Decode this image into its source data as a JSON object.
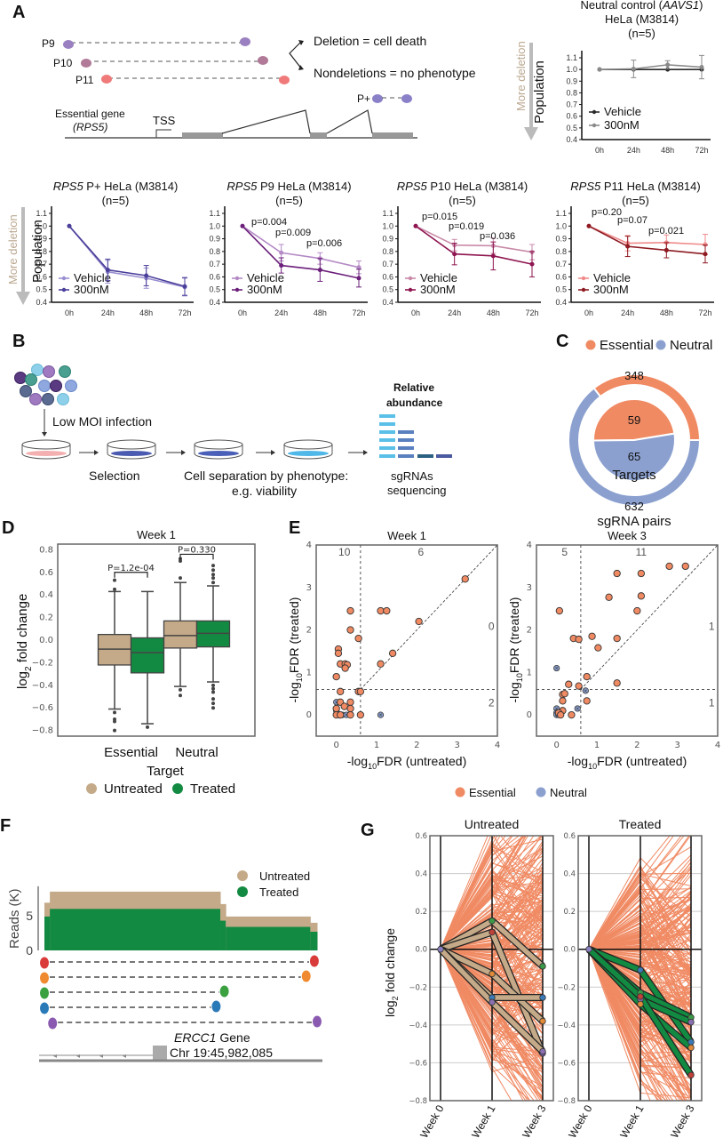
{
  "panels": {
    "A": {
      "letter": "A",
      "diagram": {
        "pairs": [
          "P9",
          "P10",
          "P11",
          "P+"
        ],
        "outcome_deletion": "Deletion = cell death",
        "outcome_nondeletion": "Nondeletions = no phenotype",
        "gene_label": "Essential gene",
        "gene_name": "(RPS5)",
        "tss_label": "TSS",
        "more_deletion": "More deletion"
      }
    },
    "B": {
      "letter": "B",
      "low_moi": "Low MOI infection",
      "selection": "Selection",
      "separation_1": "Cell separation by phenotype:",
      "separation_2": "e.g. viability",
      "relative_1": "Relative",
      "relative_2": "abundance",
      "seq_1": "sgRNAs",
      "seq_2": "sequencing"
    },
    "C": {
      "letter": "C"
    },
    "D": {
      "letter": "D"
    },
    "E": {
      "letter": "E"
    },
    "F": {
      "letter": "F",
      "gene_name": "ERCC1",
      "gene_suffix": " Gene",
      "coord": "Chr 19:45,982,085"
    },
    "G": {
      "letter": "G"
    }
  },
  "chart_data": [
    {
      "id": "A-aavs1",
      "type": "line",
      "title_italic": "AAVS1",
      "title_line1_pre": "Neutral control (",
      "title_line1_post": ")",
      "title_line2": "HeLa (M3814)",
      "title_line3": "(n=5)",
      "ylabel": "Population",
      "ylim": [
        0.4,
        1.1
      ],
      "yticks": [
        "0.4",
        "0.5",
        "0.6",
        "0.7",
        "0.8",
        "0.9",
        "1.0",
        "1.1"
      ],
      "categories": [
        "0h",
        "24h",
        "48h",
        "72h"
      ],
      "series": [
        {
          "name": "Vehicle",
          "color": "#2b2b2b",
          "values": [
            1.0,
            1.0,
            1.0,
            1.0
          ],
          "err": [
            0,
            0,
            0,
            0
          ]
        },
        {
          "name": "300nM",
          "color": "#8a8a8a",
          "values": [
            1.0,
            1.005,
            1.04,
            1.02
          ],
          "err": [
            0,
            0.075,
            0.035,
            0.1
          ]
        }
      ],
      "pvalues": []
    },
    {
      "id": "A-pplus",
      "type": "line",
      "title_italic": "RPS5",
      "title_rest": " P+ HeLa (M3814)",
      "title_line2": "(n=5)",
      "ylabel": "Population",
      "ylim": [
        0.4,
        1.1
      ],
      "yticks": [
        "0.4",
        "0.5",
        "0.6",
        "0.7",
        "0.8",
        "0.9",
        "1.0",
        "1.1"
      ],
      "categories": [
        "0h",
        "24h",
        "48h",
        "72h"
      ],
      "series": [
        {
          "name": "Vehicle",
          "color": "#9a8fd0",
          "values": [
            1.0,
            0.64,
            0.59,
            0.52
          ],
          "err": [
            0,
            0.09,
            0.08,
            0.07
          ]
        },
        {
          "name": "300nM",
          "color": "#4a3f9a",
          "values": [
            1.0,
            0.655,
            0.61,
            0.525
          ],
          "err": [
            0,
            0.085,
            0.08,
            0.07
          ]
        }
      ],
      "pvalues": []
    },
    {
      "id": "A-p9",
      "type": "line",
      "title_italic": "RPS5",
      "title_rest": " P9 HeLa (M3814)",
      "title_line2": "(n=5)",
      "ylabel": "",
      "ylim": [
        0.4,
        1.1
      ],
      "yticks": [
        "0.4",
        "0.5",
        "0.6",
        "0.7",
        "0.8",
        "0.9",
        "1.0",
        "1.1"
      ],
      "categories": [
        "0h",
        "24h",
        "48h",
        "72h"
      ],
      "series": [
        {
          "name": "Vehicle",
          "color": "#b48ac6",
          "values": [
            1.0,
            0.79,
            0.745,
            0.675
          ],
          "err": [
            0,
            0.065,
            0.045,
            0.05
          ]
        },
        {
          "name": "300nM",
          "color": "#6b1f7a",
          "values": [
            1.0,
            0.69,
            0.655,
            0.59
          ],
          "err": [
            0,
            0.06,
            0.09,
            0.07
          ]
        }
      ],
      "pvalues": [
        "p=0.004",
        "p=0.009",
        "p=0.006"
      ]
    },
    {
      "id": "A-p10",
      "type": "line",
      "title_italic": "RPS5",
      "title_rest": " P10 HeLa (M3814)",
      "title_line2": "(n=5)",
      "ylabel": "",
      "ylim": [
        0.4,
        1.1
      ],
      "yticks": [
        "0.4",
        "0.5",
        "0.6",
        "0.7",
        "0.8",
        "0.9",
        "1.0",
        "1.1"
      ],
      "categories": [
        "0h",
        "24h",
        "48h",
        "72h"
      ],
      "series": [
        {
          "name": "Vehicle",
          "color": "#c98aa8",
          "values": [
            1.0,
            0.85,
            0.845,
            0.795
          ],
          "err": [
            0,
            0.045,
            0.06,
            0.06
          ]
        },
        {
          "name": "300nM",
          "color": "#8e1550",
          "values": [
            1.0,
            0.78,
            0.765,
            0.7
          ],
          "err": [
            0,
            0.085,
            0.11,
            0.1
          ]
        }
      ],
      "pvalues": [
        "p=0.015",
        "p=0.019",
        "p=0.036"
      ]
    },
    {
      "id": "A-p11",
      "type": "line",
      "title_italic": "RPS5",
      "title_rest": " P11 HeLa (M3814)",
      "title_line2": "(n=5)",
      "ylabel": "",
      "ylim": [
        0.4,
        1.1
      ],
      "yticks": [
        "0.4",
        "0.5",
        "0.6",
        "0.7",
        "0.8",
        "0.9",
        "1.0",
        "1.1"
      ],
      "categories": [
        "0h",
        "24h",
        "48h",
        "72h"
      ],
      "series": [
        {
          "name": "Vehicle",
          "color": "#f08a8a",
          "values": [
            1.0,
            0.865,
            0.87,
            0.855
          ],
          "err": [
            0,
            0.06,
            0.06,
            0.08
          ]
        },
        {
          "name": "300nM",
          "color": "#8e1a22",
          "values": [
            1.0,
            0.84,
            0.81,
            0.78
          ],
          "err": [
            0,
            0.08,
            0.06,
            0.07
          ]
        }
      ],
      "pvalues": [
        "p=0.20",
        "p=0.07",
        "p=0.021"
      ]
    },
    {
      "id": "C",
      "type": "pie",
      "legend": [
        {
          "name": "Essential",
          "color": "#f08a63"
        },
        {
          "name": "Neutral",
          "color": "#8ba0cf"
        }
      ],
      "inner": {
        "label": "Targets",
        "values": [
          59,
          65
        ]
      },
      "outer": {
        "label": "sgRNA pairs",
        "values": [
          348,
          632
        ]
      }
    },
    {
      "id": "D",
      "type": "box",
      "title": "Week 1",
      "xlabel": "Target",
      "ylabel_pre": "log",
      "ylabel_sub": "2",
      "ylabel_post": " fold change",
      "ylim": [
        -0.85,
        0.85
      ],
      "yticks": [
        -0.8,
        -0.6,
        -0.4,
        -0.2,
        0.0,
        0.2,
        0.4,
        0.6,
        0.8
      ],
      "ytick_labels": [
        "−0.8",
        "−0.6",
        "−0.4",
        "−0.2",
        "0.0",
        "0.2",
        "0.4",
        "0.6",
        "0.8"
      ],
      "categories": [
        "Essential",
        "Neutral"
      ],
      "legend": [
        {
          "name": "Untreated",
          "color": "#c4aa88"
        },
        {
          "name": "Treated",
          "color": "#138a42"
        }
      ],
      "boxes": [
        {
          "group": "Essential",
          "series": "Untreated",
          "q1": -0.22,
          "median": -0.08,
          "q3": 0.05,
          "whislo": -0.61,
          "whishi": 0.43,
          "fliers": [
            0.45,
            0.53,
            -0.64,
            -0.7,
            -0.72,
            -0.8
          ]
        },
        {
          "group": "Essential",
          "series": "Treated",
          "q1": -0.29,
          "median": -0.11,
          "q3": 0.02,
          "whislo": -0.74,
          "whishi": 0.43,
          "fliers": [
            -0.77
          ]
        },
        {
          "group": "Neutral",
          "series": "Untreated",
          "q1": -0.07,
          "median": 0.04,
          "q3": 0.17,
          "whislo": -0.41,
          "whishi": 0.51,
          "fliers": [
            0.55,
            0.7,
            0.72,
            -0.44,
            -0.49
          ]
        },
        {
          "group": "Neutral",
          "series": "Treated",
          "q1": -0.06,
          "median": 0.06,
          "q3": 0.17,
          "whislo": -0.37,
          "whishi": 0.48,
          "fliers": [
            0.51,
            0.55,
            0.58,
            0.62,
            0.66,
            -0.4,
            -0.43,
            -0.46,
            -0.52,
            -0.56,
            -0.6
          ]
        }
      ],
      "pvalues": [
        "P=1.2e-04",
        "P=0.330"
      ]
    },
    {
      "id": "E-week1",
      "type": "scatter",
      "title": "Week 1",
      "xlabel_pre": "-log",
      "xlabel_sub": "10",
      "xlabel_post": "FDR (untreated)",
      "ylabel_pre": "-log",
      "ylabel_sub": "10",
      "ylabel_post": "FDR (treated)",
      "xlim": [
        -0.5,
        4
      ],
      "ylim": [
        -0.5,
        4
      ],
      "ticks": [
        "0",
        "1",
        "2",
        "3",
        "4"
      ],
      "threshold": 0.6,
      "quadrant_counts": {
        "top_left": "10",
        "top_right": "6",
        "right_upper": "0",
        "right_lower": "2"
      },
      "essential": [
        [
          3.2,
          3.2
        ],
        [
          0.35,
          2.45
        ],
        [
          1.1,
          2.45
        ],
        [
          1.25,
          2.45
        ],
        [
          2.05,
          2.2
        ],
        [
          0.35,
          2.0
        ],
        [
          0.55,
          1.8
        ],
        [
          0.05,
          1.55
        ],
        [
          0.05,
          1.45
        ],
        [
          1.4,
          1.45
        ],
        [
          0.1,
          1.2
        ],
        [
          0.22,
          1.2
        ],
        [
          0.27,
          1.18
        ],
        [
          1.1,
          1.2
        ],
        [
          0.22,
          1.1
        ],
        [
          0,
          0.9
        ],
        [
          0.1,
          0.55
        ],
        [
          0.55,
          0.55
        ],
        [
          0.6,
          0.55
        ],
        [
          0.1,
          0.3
        ],
        [
          0.35,
          0.3
        ],
        [
          0,
          0.15
        ],
        [
          0.2,
          0.2
        ],
        [
          0.35,
          0.15
        ],
        [
          0,
          0
        ],
        [
          0.1,
          0
        ],
        [
          0.35,
          0
        ],
        [
          0.6,
          0
        ]
      ],
      "neutral": [
        [
          0,
          0.3
        ],
        [
          0,
          0
        ],
        [
          0.05,
          0
        ],
        [
          0.15,
          0
        ],
        [
          0.25,
          0
        ],
        [
          0,
          0.1
        ],
        [
          1.1,
          0
        ]
      ]
    },
    {
      "id": "E-week3",
      "type": "scatter",
      "title": "Week 3",
      "xlabel_pre": "-log",
      "xlabel_sub": "10",
      "xlabel_post": "FDR (untreated)",
      "ylabel_pre": "-log",
      "ylabel_sub": "10",
      "ylabel_post": "FDR (treated)",
      "xlim": [
        -0.5,
        4
      ],
      "ylim": [
        -0.5,
        4
      ],
      "ticks": [
        "0",
        "1",
        "2",
        "3",
        "4"
      ],
      "threshold": 0.6,
      "quadrant_counts": {
        "top_left": "5",
        "top_right": "11",
        "right_upper": "1",
        "right_lower": "1"
      },
      "essential": [
        [
          2.8,
          3.5
        ],
        [
          3.2,
          3.5
        ],
        [
          1.5,
          3.33
        ],
        [
          2.1,
          3.33
        ],
        [
          1.3,
          2.77
        ],
        [
          2.1,
          2.8
        ],
        [
          0.07,
          2.45
        ],
        [
          2.0,
          2.45
        ],
        [
          0.42,
          1.8
        ],
        [
          0.55,
          1.78
        ],
        [
          0.88,
          1.85
        ],
        [
          1.5,
          1.8
        ],
        [
          1.03,
          1.58
        ],
        [
          0.75,
          0.9
        ],
        [
          0.3,
          0.72
        ],
        [
          0.55,
          0.68
        ],
        [
          1.5,
          0.75
        ],
        [
          0.15,
          0.48
        ],
        [
          0.2,
          0.5
        ],
        [
          0.15,
          0.33
        ],
        [
          0.75,
          0.33
        ],
        [
          0.15,
          0.1
        ],
        [
          0.05,
          0.05
        ],
        [
          0.1,
          0
        ],
        [
          0.37,
          0
        ]
      ],
      "neutral": [
        [
          0,
          1.1
        ],
        [
          0.72,
          0.57
        ],
        [
          0,
          0.15
        ],
        [
          0,
          0.05
        ],
        [
          0,
          0
        ],
        [
          0.05,
          0
        ],
        [
          0.52,
          0.15
        ]
      ]
    },
    {
      "id": "E-legend",
      "type": "legend",
      "items": [
        {
          "name": "Essential",
          "color": "#f08a63"
        },
        {
          "name": "Neutral",
          "color": "#8ba0cf"
        }
      ]
    },
    {
      "id": "F",
      "type": "area",
      "ylabel": "Reads (K)",
      "yticks": [
        "0",
        "5"
      ],
      "ylim": [
        0,
        9
      ],
      "legend": [
        {
          "name": "Untreated",
          "color": "#c4aa88"
        },
        {
          "name": "Treated",
          "color": "#138a42"
        }
      ],
      "segments": [
        {
          "from": 0,
          "to": 0.02,
          "untreated": 6.9,
          "treated": 4.9
        },
        {
          "from": 0.02,
          "to": 0.645,
          "untreated": 8.5,
          "treated": 6.0
        },
        {
          "from": 0.645,
          "to": 0.665,
          "untreated": 6.7,
          "treated": 4.3
        },
        {
          "from": 0.665,
          "to": 0.975,
          "untreated": 4.9,
          "treated": 3.4
        },
        {
          "from": 0.975,
          "to": 1.0,
          "untreated": 4.0,
          "treated": 2.7
        }
      ],
      "pairs": [
        {
          "color": "#d93a3a",
          "from": 0.0,
          "to": 0.99
        },
        {
          "color": "#f08a30",
          "from": 0.0,
          "to": 0.96
        },
        {
          "color": "#3aa040",
          "from": 0.0,
          "to": 0.66
        },
        {
          "color": "#2a7ab8",
          "from": 0.0,
          "to": 0.63
        },
        {
          "color": "#8a5ab0",
          "from": 0.03,
          "to": 1.0
        }
      ]
    },
    {
      "id": "G-untreated",
      "type": "line",
      "title": "Untreated",
      "ylabel_pre": "log",
      "ylabel_sub": "2",
      "ylabel_post": " fold change",
      "ylim": [
        -0.8,
        0.6
      ],
      "yticks": [
        -0.8,
        -0.6,
        -0.4,
        -0.2,
        0.0,
        0.2,
        0.4,
        0.6
      ],
      "ytick_labels": [
        "−0.8",
        "−0.6",
        "−0.4",
        "−0.2",
        "0.0",
        "0.2",
        "0.4",
        "0.6"
      ],
      "categories": [
        "Week 0",
        "Week 1",
        "Week 3"
      ],
      "highlight_color": "#c4aa88",
      "highlight": [
        {
          "values": [
            0,
            0.15,
            -0.09
          ],
          "c1": "#3a9a48",
          "c3": "#3a9a48"
        },
        {
          "values": [
            0,
            0.09,
            -0.55
          ],
          "c1": "#c0403a",
          "c3": "#7a5aa0"
        },
        {
          "values": [
            0,
            -0.13,
            -0.38
          ],
          "c1": "#e08a3a",
          "c3": "#e08a3a"
        },
        {
          "values": [
            0,
            -0.255,
            -0.255
          ],
          "c1": "#3a7ab8",
          "c3": "#3a7ab8"
        },
        {
          "values": [
            0,
            -0.28,
            -0.54
          ],
          "c1": "#8a70b0",
          "c3": "#8a70b0"
        }
      ]
    },
    {
      "id": "G-treated",
      "type": "line",
      "title": "Treated",
      "ylim": [
        -0.8,
        0.6
      ],
      "yticks": [
        -0.8,
        -0.6,
        -0.4,
        -0.2,
        0.0,
        0.2,
        0.4,
        0.6
      ],
      "ytick_labels": [
        "−0.8",
        "−0.6",
        "−0.4",
        "−0.2",
        "0.0",
        "0.2",
        "0.4",
        "0.6"
      ],
      "categories": [
        "Week 0",
        "Week 1",
        "Week 3"
      ],
      "highlight_color": "#138a42",
      "highlight": [
        {
          "values": [
            0,
            -0.11,
            -0.49
          ],
          "c1": "#3a7ab8",
          "c3": "#3a7ab8"
        },
        {
          "values": [
            0,
            -0.23,
            -0.36
          ],
          "c1": "#3a9a48",
          "c3": "#3a9a48"
        },
        {
          "values": [
            0,
            -0.265,
            -0.385
          ],
          "c1": "#8a70b0",
          "c3": "#8a70b0"
        },
        {
          "values": [
            0,
            -0.29,
            -0.52
          ],
          "c1": "#e08a3a",
          "c3": "#e08a3a"
        },
        {
          "values": [
            0,
            -0.25,
            -0.665
          ],
          "c1": "#c0403a",
          "c3": "#c0403a"
        }
      ]
    }
  ]
}
